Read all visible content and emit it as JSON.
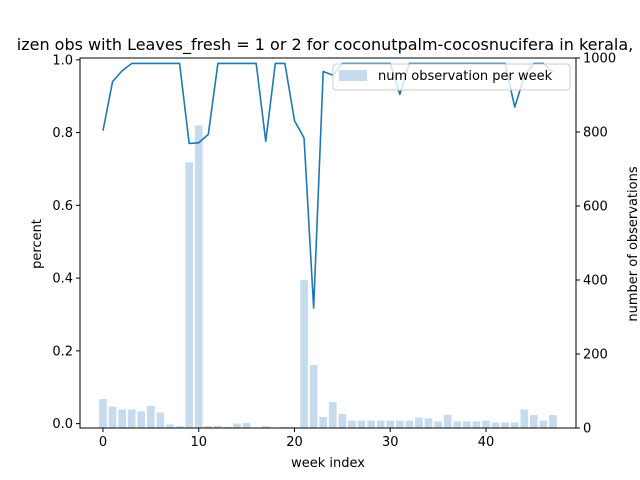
{
  "chart_data": {
    "type": "bar+line",
    "title": "izen obs with Leaves_fresh = 1 or 2 for coconutpalm-cocosnucifera in kerala,",
    "xlabel": "week index",
    "ylabel_left": "percent",
    "ylabel_right": "number of observations",
    "xlim": [
      -2.4,
      49.4
    ],
    "ylim_left": [
      -0.012,
      1.005
    ],
    "ylim_right": [
      0,
      1000
    ],
    "x_ticks": [
      0,
      10,
      20,
      30,
      40
    ],
    "y_left_ticks": [
      "0.0",
      "0.2",
      "0.4",
      "0.6",
      "0.8",
      "1.0"
    ],
    "y_right_ticks": [
      "0",
      "200",
      "400",
      "600",
      "800",
      "1000"
    ],
    "legend": {
      "placement": "upper right",
      "entries": [
        "num observation per week"
      ]
    },
    "colors": {
      "line": "#1f77b4",
      "bars": "#c6dbed"
    },
    "bar_series": {
      "name": "num observation per week",
      "axis": "right",
      "x": [
        0,
        1,
        2,
        3,
        4,
        5,
        6,
        7,
        8,
        9,
        10,
        11,
        12,
        13,
        14,
        15,
        16,
        17,
        18,
        19,
        20,
        21,
        22,
        23,
        24,
        25,
        26,
        27,
        28,
        29,
        30,
        31,
        32,
        33,
        34,
        35,
        36,
        37,
        38,
        39,
        40,
        41,
        42,
        43,
        44,
        45,
        46,
        47
      ],
      "values": [
        78,
        58,
        50,
        50,
        45,
        60,
        42,
        10,
        5,
        718,
        818,
        5,
        6,
        3,
        12,
        14,
        0,
        5,
        0,
        3,
        2,
        400,
        170,
        30,
        70,
        38,
        20,
        20,
        20,
        20,
        20,
        20,
        20,
        28,
        26,
        18,
        36,
        18,
        18,
        18,
        20,
        15,
        15,
        15,
        50,
        35,
        20,
        35
      ]
    },
    "line_series": {
      "axis": "left",
      "x": [
        0,
        1,
        2,
        3,
        4,
        5,
        6,
        7,
        8,
        9,
        10,
        11,
        12,
        13,
        14,
        15,
        16,
        17,
        18,
        19,
        20,
        21,
        22,
        23,
        24,
        25,
        26,
        27,
        28,
        29,
        30,
        31,
        32,
        33,
        34,
        35,
        36,
        37,
        38,
        39,
        40,
        41,
        42,
        43,
        44,
        45,
        46,
        47
      ],
      "values": [
        0.805,
        0.94,
        0.97,
        0.99,
        0.99,
        0.99,
        0.99,
        0.99,
        0.99,
        0.77,
        0.772,
        0.795,
        0.99,
        0.99,
        0.99,
        0.99,
        0.99,
        0.776,
        0.99,
        0.99,
        0.833,
        0.785,
        0.318,
        0.968,
        0.958,
        0.99,
        0.99,
        0.99,
        0.99,
        0.99,
        0.99,
        0.905,
        0.99,
        0.99,
        0.99,
        0.99,
        0.99,
        0.99,
        0.99,
        0.99,
        0.99,
        0.99,
        0.99,
        0.87,
        0.955,
        0.99,
        0.99,
        0.965
      ]
    }
  }
}
